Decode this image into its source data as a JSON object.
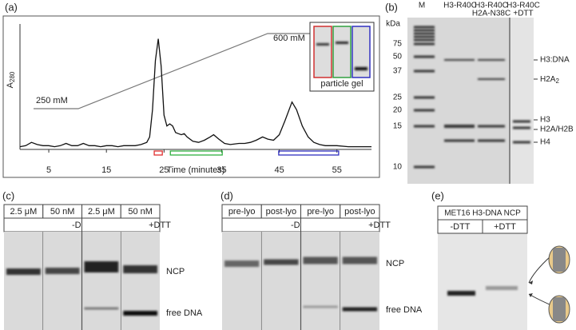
{
  "chart_data": {
    "type": "line",
    "panel_label": "(a)",
    "xlabel": "Time (minutes)",
    "ylabel": {
      "main": "A",
      "sub": "280"
    },
    "x": [
      0,
      1,
      2,
      3,
      4,
      5,
      6,
      7,
      8,
      9,
      10,
      11,
      12,
      13,
      14,
      15,
      16,
      17,
      18,
      19,
      20,
      21,
      22,
      22.5,
      23,
      23.5,
      24,
      24.5,
      25,
      25.5,
      26,
      26.5,
      27,
      27.5,
      28,
      28.5,
      29,
      30,
      31,
      32,
      33,
      33.6,
      34.5,
      35.5,
      36.5,
      38,
      39,
      40,
      41,
      42.1,
      43,
      44,
      45,
      46,
      47.2,
      48,
      49,
      50,
      51,
      52,
      53,
      55,
      57,
      59,
      61
    ],
    "values": [
      0.01,
      0.02,
      0.05,
      0.03,
      0.02,
      0.02,
      0.01,
      0.02,
      0.04,
      0.02,
      0.02,
      0.04,
      0.02,
      0.02,
      0.01,
      0.02,
      0.02,
      0.01,
      0.02,
      0.02,
      0.02,
      0.03,
      0.05,
      0.1,
      0.35,
      0.8,
      1.0,
      0.75,
      0.3,
      0.2,
      0.22,
      0.2,
      0.14,
      0.13,
      0.12,
      0.13,
      0.1,
      0.06,
      0.05,
      0.07,
      0.1,
      0.12,
      0.08,
      0.04,
      0.03,
      0.04,
      0.04,
      0.05,
      0.07,
      0.1,
      0.08,
      0.07,
      0.12,
      0.25,
      0.42,
      0.35,
      0.2,
      0.1,
      0.05,
      0.03,
      0.02,
      0.02,
      0.01,
      0.01,
      0.01
    ],
    "color": "#111111",
    "xlim": [
      0,
      61
    ],
    "xticks": [
      5,
      15,
      25,
      35,
      45,
      55
    ],
    "ylim": [
      0,
      1.1
    ],
    "gradient_labels": [
      "250 mM",
      "600 mM"
    ],
    "inset_label": "particle gel",
    "fractions": [
      {
        "color": "#e03030",
        "start": 23.3,
        "end": 24.7
      },
      {
        "color": "#30b040",
        "start": 26.1,
        "end": 35.1
      },
      {
        "color": "#3030c0",
        "start": 44.9,
        "end": 55.3
      }
    ]
  },
  "panel_b": {
    "panel_label": "(b)",
    "lanes": [
      "M",
      "H3-R40C",
      [
        "H3-R40C",
        "H2A-N38C"
      ],
      [
        "H3-R40C",
        "+DTT"
      ]
    ],
    "unit": "kDa",
    "markers": [
      75,
      50,
      37,
      25,
      20,
      15,
      10
    ],
    "bands": [
      "H3:DNA",
      {
        "main": "H2A",
        "sub": "2"
      },
      "H3",
      "H2A/H2B",
      "H4"
    ]
  },
  "panel_c": {
    "panel_label": "(c)",
    "conditions": [
      "2.5 μM",
      "50 nM",
      "2.5 μM",
      "50 nM"
    ],
    "treatments": [
      "-DTT",
      "+DTT"
    ],
    "bands": [
      "NCP",
      "free DNA"
    ]
  },
  "panel_d": {
    "panel_label": "(d)",
    "conditions": [
      "pre-lyo",
      "post-lyo",
      "pre-lyo",
      "post-lyo"
    ],
    "treatments": [
      "-DTT",
      "+DTT"
    ],
    "bands": [
      "NCP",
      "free DNA"
    ]
  },
  "panel_e": {
    "panel_label": "(e)",
    "title": "MET16 H3-DNA NCP",
    "treatments": [
      "-DTT",
      "+DTT"
    ]
  }
}
